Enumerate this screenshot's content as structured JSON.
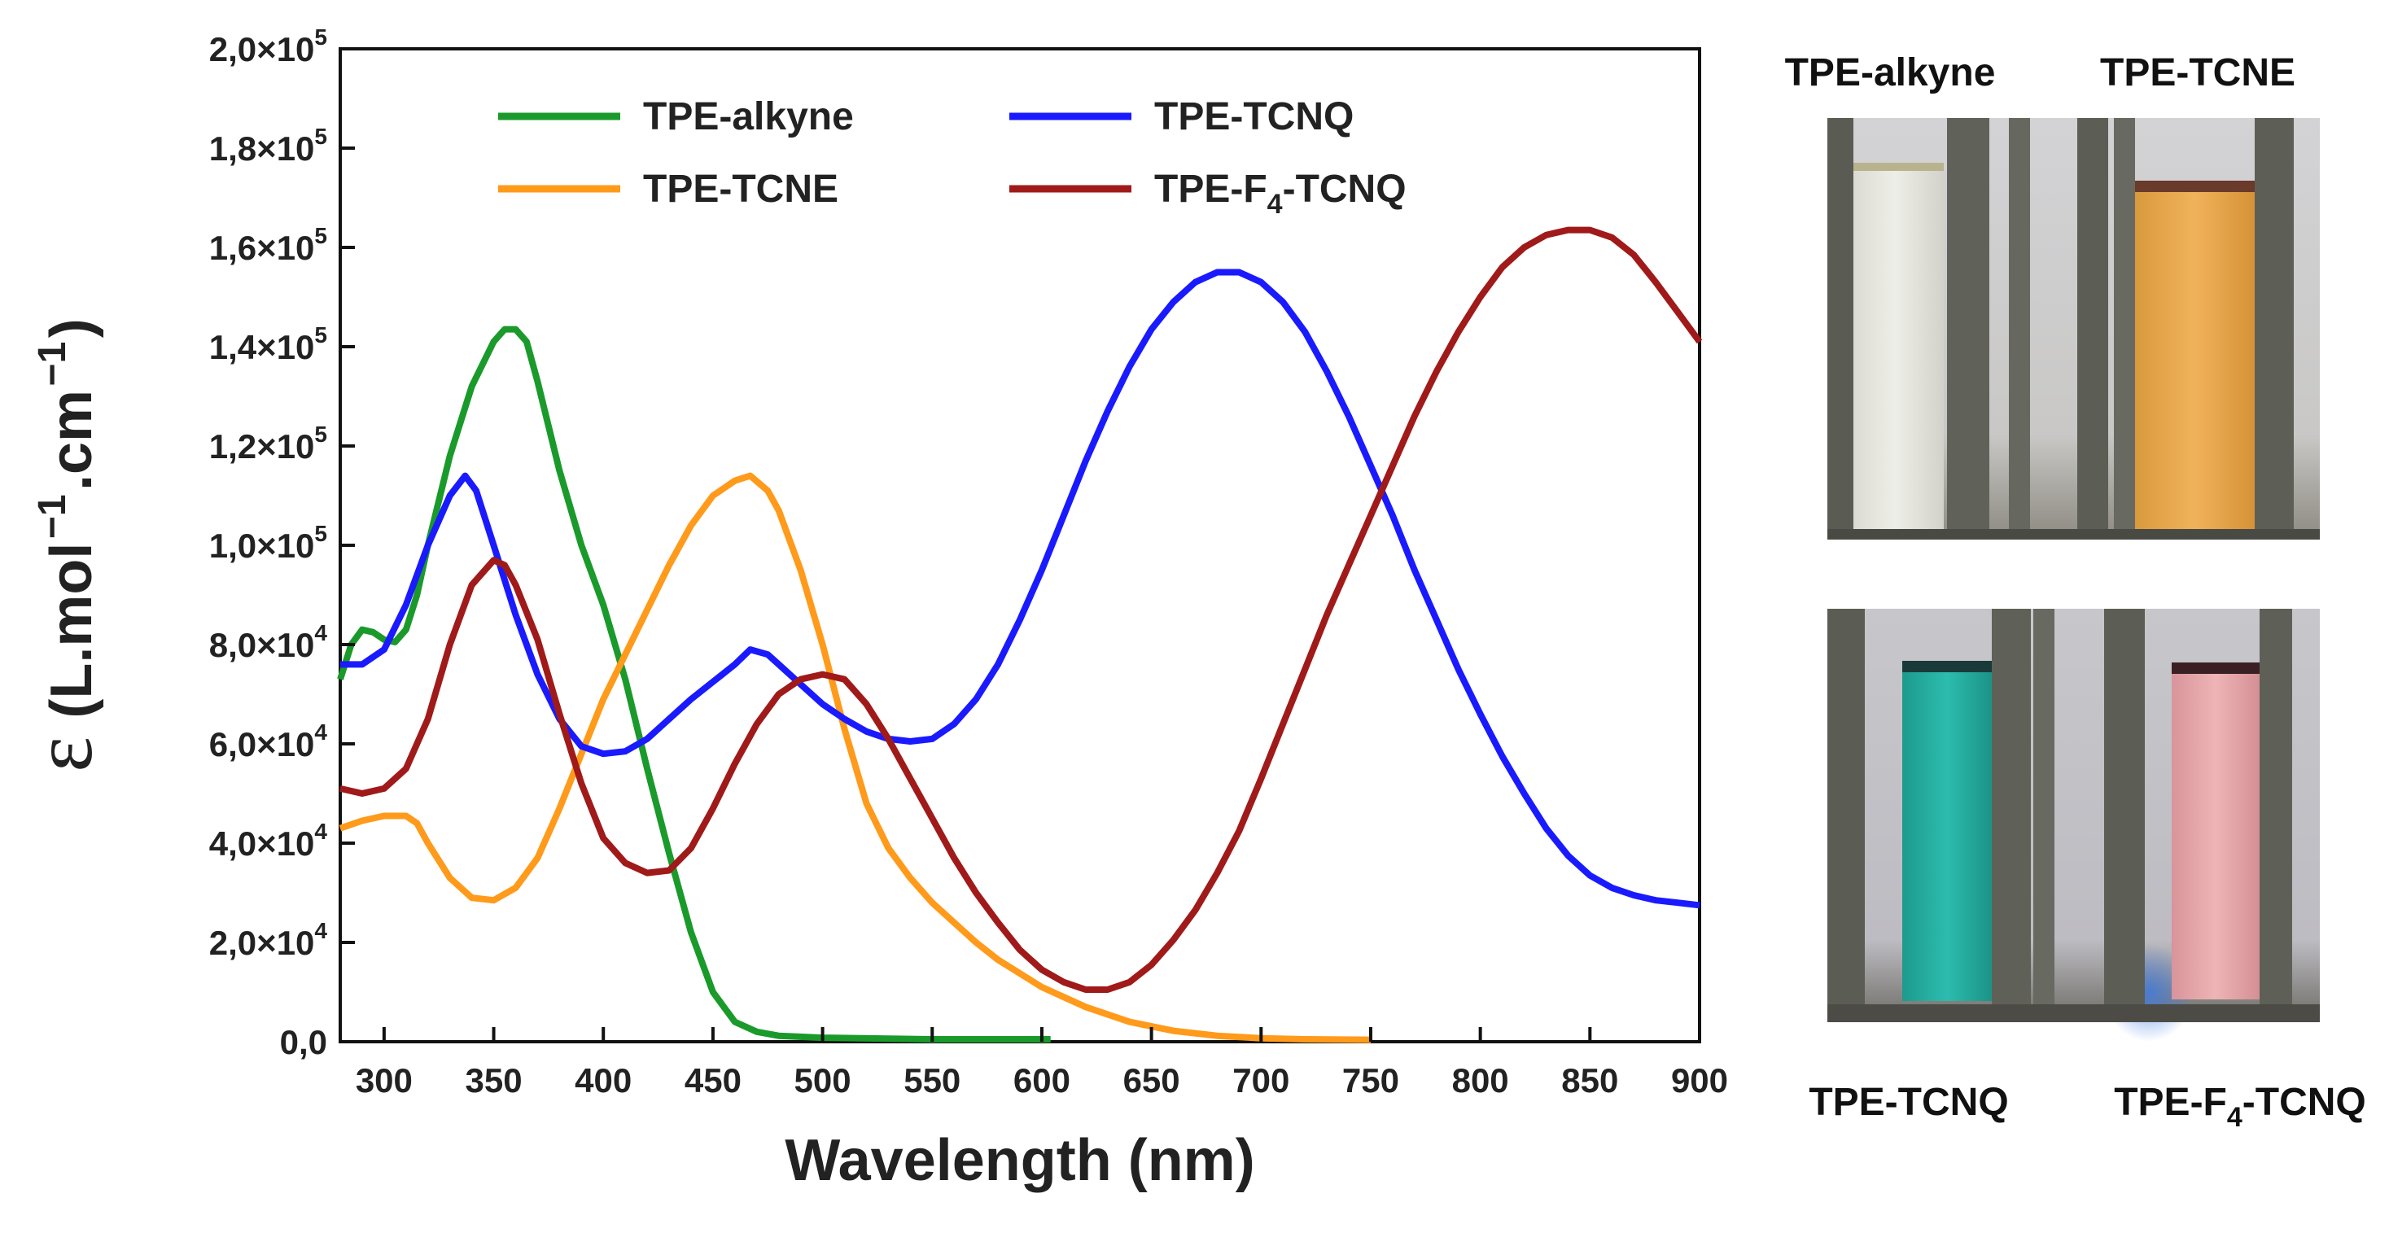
{
  "chart_data": {
    "type": "line",
    "xlabel": "Wavelength (nm)",
    "ylabel": {
      "symbol": "ε",
      "unit_text": "(L.mol",
      "exp1": "−1",
      "mid": ".cm",
      "exp2": "−1",
      "close": ")"
    },
    "xlim": [
      280,
      900
    ],
    "ylim": [
      0,
      200000
    ],
    "x_ticks": [
      {
        "value": 300,
        "label": "300"
      },
      {
        "value": 350,
        "label": "350"
      },
      {
        "value": 400,
        "label": "400"
      },
      {
        "value": 450,
        "label": "450"
      },
      {
        "value": 500,
        "label": "500"
      },
      {
        "value": 550,
        "label": "550"
      },
      {
        "value": 600,
        "label": "600"
      },
      {
        "value": 650,
        "label": "650"
      },
      {
        "value": 700,
        "label": "700"
      },
      {
        "value": 750,
        "label": "750"
      },
      {
        "value": 800,
        "label": "800"
      },
      {
        "value": 850,
        "label": "850"
      },
      {
        "value": 900,
        "label": "900"
      }
    ],
    "y_ticks": [
      {
        "value": 0,
        "label": "0,0",
        "mant": "",
        "exp": ""
      },
      {
        "value": 20000,
        "label": "",
        "mant": "2,0×10",
        "exp": "4"
      },
      {
        "value": 40000,
        "label": "",
        "mant": "4,0×10",
        "exp": "4"
      },
      {
        "value": 60000,
        "label": "",
        "mant": "6,0×10",
        "exp": "4"
      },
      {
        "value": 80000,
        "label": "",
        "mant": "8,0×10",
        "exp": "4"
      },
      {
        "value": 100000,
        "label": "",
        "mant": "1,0×10",
        "exp": "5"
      },
      {
        "value": 120000,
        "label": "",
        "mant": "1,2×10",
        "exp": "5"
      },
      {
        "value": 140000,
        "label": "",
        "mant": "1,4×10",
        "exp": "5"
      },
      {
        "value": 160000,
        "label": "",
        "mant": "1,6×10",
        "exp": "5"
      },
      {
        "value": 180000,
        "label": "",
        "mant": "1,8×10",
        "exp": "5"
      },
      {
        "value": 200000,
        "label": "",
        "mant": "2,0×10",
        "exp": "5"
      }
    ],
    "grid": false,
    "legend": "top-center",
    "series": [
      {
        "name": "TPE-alkyne",
        "color": "#1a9a2a",
        "points": [
          [
            280,
            73000
          ],
          [
            285,
            80000
          ],
          [
            290,
            83000
          ],
          [
            295,
            82500
          ],
          [
            300,
            81000
          ],
          [
            305,
            80500
          ],
          [
            310,
            83000
          ],
          [
            315,
            90000
          ],
          [
            320,
            100000
          ],
          [
            330,
            118000
          ],
          [
            340,
            132000
          ],
          [
            350,
            141000
          ],
          [
            355,
            143500
          ],
          [
            360,
            143500
          ],
          [
            365,
            141000
          ],
          [
            370,
            133000
          ],
          [
            380,
            115000
          ],
          [
            390,
            100000
          ],
          [
            400,
            88000
          ],
          [
            410,
            73000
          ],
          [
            420,
            55000
          ],
          [
            430,
            38000
          ],
          [
            440,
            22000
          ],
          [
            450,
            10000
          ],
          [
            460,
            4000
          ],
          [
            470,
            2000
          ],
          [
            480,
            1200
          ],
          [
            500,
            800
          ],
          [
            550,
            500
          ],
          [
            600,
            500
          ],
          [
            604,
            500
          ]
        ]
      },
      {
        "name": "TPE-TCNE",
        "color": "#ff9a1a",
        "points": [
          [
            280,
            43000
          ],
          [
            290,
            44500
          ],
          [
            300,
            45500
          ],
          [
            310,
            45500
          ],
          [
            315,
            44000
          ],
          [
            320,
            40000
          ],
          [
            330,
            33000
          ],
          [
            340,
            29000
          ],
          [
            350,
            28500
          ],
          [
            360,
            31000
          ],
          [
            370,
            37000
          ],
          [
            380,
            47000
          ],
          [
            390,
            58000
          ],
          [
            400,
            69000
          ],
          [
            410,
            78000
          ],
          [
            420,
            87000
          ],
          [
            430,
            96000
          ],
          [
            440,
            104000
          ],
          [
            450,
            110000
          ],
          [
            460,
            113000
          ],
          [
            467,
            114000
          ],
          [
            475,
            111000
          ],
          [
            480,
            107000
          ],
          [
            490,
            95000
          ],
          [
            500,
            80000
          ],
          [
            510,
            63000
          ],
          [
            520,
            48000
          ],
          [
            530,
            39000
          ],
          [
            540,
            33000
          ],
          [
            550,
            28000
          ],
          [
            560,
            24000
          ],
          [
            570,
            20000
          ],
          [
            580,
            16500
          ],
          [
            600,
            11000
          ],
          [
            620,
            7000
          ],
          [
            640,
            4000
          ],
          [
            660,
            2200
          ],
          [
            680,
            1200
          ],
          [
            700,
            700
          ],
          [
            720,
            500
          ],
          [
            750,
            400
          ]
        ]
      },
      {
        "name": "TPE-TCNQ",
        "color": "#1a1aff",
        "points": [
          [
            280,
            76000
          ],
          [
            290,
            76000
          ],
          [
            300,
            79000
          ],
          [
            310,
            88000
          ],
          [
            320,
            100000
          ],
          [
            330,
            110000
          ],
          [
            337,
            114000
          ],
          [
            342,
            111000
          ],
          [
            350,
            100000
          ],
          [
            360,
            86000
          ],
          [
            370,
            74000
          ],
          [
            380,
            65000
          ],
          [
            390,
            59500
          ],
          [
            400,
            58000
          ],
          [
            410,
            58500
          ],
          [
            420,
            61000
          ],
          [
            430,
            65000
          ],
          [
            440,
            69000
          ],
          [
            450,
            72500
          ],
          [
            460,
            76000
          ],
          [
            467,
            79000
          ],
          [
            475,
            78000
          ],
          [
            480,
            76000
          ],
          [
            490,
            72000
          ],
          [
            500,
            68000
          ],
          [
            510,
            65000
          ],
          [
            520,
            62500
          ],
          [
            530,
            61000
          ],
          [
            540,
            60500
          ],
          [
            550,
            61000
          ],
          [
            560,
            64000
          ],
          [
            570,
            69000
          ],
          [
            580,
            76000
          ],
          [
            590,
            85000
          ],
          [
            600,
            95000
          ],
          [
            610,
            106000
          ],
          [
            620,
            117000
          ],
          [
            630,
            127000
          ],
          [
            640,
            136000
          ],
          [
            650,
            143500
          ],
          [
            660,
            149000
          ],
          [
            670,
            153000
          ],
          [
            680,
            155000
          ],
          [
            690,
            155000
          ],
          [
            700,
            153000
          ],
          [
            710,
            149000
          ],
          [
            720,
            143000
          ],
          [
            730,
            135000
          ],
          [
            740,
            126000
          ],
          [
            750,
            116000
          ],
          [
            760,
            106000
          ],
          [
            770,
            95000
          ],
          [
            780,
            85000
          ],
          [
            790,
            75000
          ],
          [
            800,
            66000
          ],
          [
            810,
            57500
          ],
          [
            820,
            50000
          ],
          [
            830,
            43000
          ],
          [
            840,
            37500
          ],
          [
            850,
            33500
          ],
          [
            860,
            31000
          ],
          [
            870,
            29500
          ],
          [
            880,
            28500
          ],
          [
            890,
            28000
          ],
          [
            900,
            27500
          ]
        ]
      },
      {
        "name": "TPE-F4-TCNQ",
        "label": "TPE-F",
        "sub": "4",
        "label_tail": "-TCNQ",
        "color": "#a01a1a",
        "points": [
          [
            280,
            51000
          ],
          [
            290,
            50000
          ],
          [
            300,
            51000
          ],
          [
            310,
            55000
          ],
          [
            320,
            65000
          ],
          [
            330,
            80000
          ],
          [
            340,
            92000
          ],
          [
            350,
            97000
          ],
          [
            355,
            96000
          ],
          [
            360,
            92000
          ],
          [
            370,
            81000
          ],
          [
            380,
            66000
          ],
          [
            390,
            52000
          ],
          [
            400,
            41000
          ],
          [
            410,
            36000
          ],
          [
            420,
            34000
          ],
          [
            430,
            34500
          ],
          [
            440,
            39000
          ],
          [
            450,
            47000
          ],
          [
            460,
            56000
          ],
          [
            470,
            64000
          ],
          [
            480,
            70000
          ],
          [
            490,
            73000
          ],
          [
            500,
            74000
          ],
          [
            510,
            73000
          ],
          [
            520,
            68000
          ],
          [
            530,
            61000
          ],
          [
            540,
            53000
          ],
          [
            550,
            45000
          ],
          [
            560,
            37000
          ],
          [
            570,
            30000
          ],
          [
            580,
            24000
          ],
          [
            590,
            18500
          ],
          [
            600,
            14500
          ],
          [
            610,
            12000
          ],
          [
            620,
            10500
          ],
          [
            630,
            10500
          ],
          [
            640,
            12000
          ],
          [
            650,
            15500
          ],
          [
            660,
            20500
          ],
          [
            670,
            26500
          ],
          [
            680,
            34000
          ],
          [
            690,
            42500
          ],
          [
            700,
            53000
          ],
          [
            710,
            64000
          ],
          [
            720,
            75000
          ],
          [
            730,
            86000
          ],
          [
            740,
            96000
          ],
          [
            750,
            106000
          ],
          [
            760,
            116000
          ],
          [
            770,
            126000
          ],
          [
            780,
            135000
          ],
          [
            790,
            143000
          ],
          [
            800,
            150000
          ],
          [
            810,
            156000
          ],
          [
            820,
            160000
          ],
          [
            830,
            162500
          ],
          [
            840,
            163500
          ],
          [
            850,
            163500
          ],
          [
            860,
            162000
          ],
          [
            870,
            158500
          ],
          [
            880,
            153000
          ],
          [
            890,
            147000
          ],
          [
            900,
            141000
          ]
        ]
      }
    ]
  },
  "photos": {
    "top_left_label": "TPE-alkyne",
    "top_right_label": "TPE-TCNE",
    "bottom_left_label": "TPE-TCNQ",
    "bottom_right_label": {
      "main": "TPE-F",
      "sub": "4",
      "tail": "-TCNQ"
    },
    "colors": {
      "alkyne_liquid": "#e6e6e0",
      "tcne_liquid": "#e6a64a",
      "tcnq_liquid": "#22a89c",
      "f4tcnq_liquid": "#e3a2a6",
      "background": "#cfcfd2",
      "rack": "#5e6058"
    }
  }
}
